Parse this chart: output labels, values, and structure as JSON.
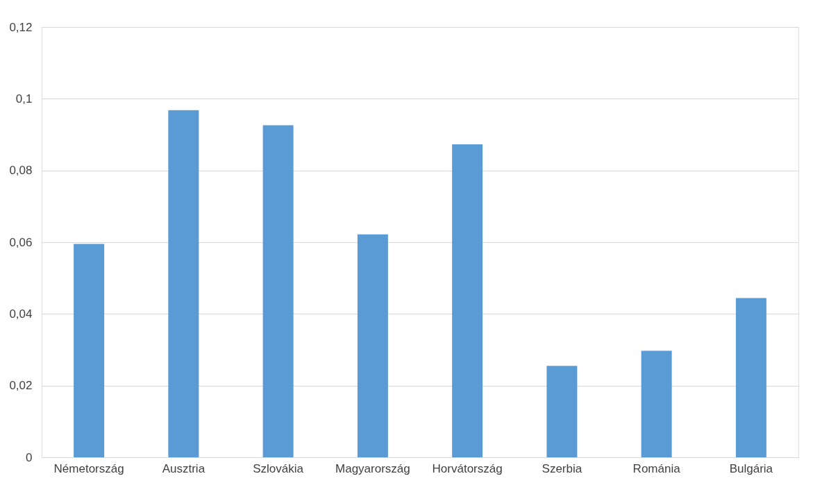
{
  "chart_data": {
    "type": "bar",
    "categories": [
      "Németország",
      "Ausztria",
      "Szlovákia",
      "Magyarország",
      "Horvátország",
      "Szerbia",
      "Románia",
      "Bulgária"
    ],
    "values": [
      0.0595,
      0.0968,
      0.0926,
      0.0622,
      0.0873,
      0.0255,
      0.0297,
      0.0444
    ],
    "color": "#5b9bd5",
    "ylim": [
      0,
      0.12
    ],
    "yticks": [
      {
        "value": 0,
        "label": "0"
      },
      {
        "value": 0.02,
        "label": "0,02"
      },
      {
        "value": 0.04,
        "label": "0,04"
      },
      {
        "value": 0.06,
        "label": "0,06"
      },
      {
        "value": 0.08,
        "label": "0,08"
      },
      {
        "value": 0.1,
        "label": "0,1"
      },
      {
        "value": 0.12,
        "label": "0,12"
      }
    ],
    "grid": "y"
  }
}
